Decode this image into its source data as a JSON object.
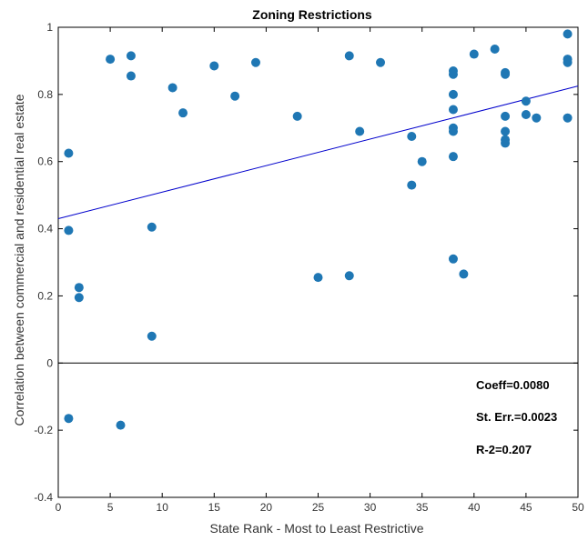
{
  "chart_data": {
    "type": "scatter",
    "title": "Zoning Restrictions",
    "xlabel": "State Rank - Most to Least Restrictive",
    "ylabel": "Correlation between commercial and residential real estate",
    "xlim": [
      0,
      50
    ],
    "ylim": [
      -0.4,
      1
    ],
    "xticks": [
      0,
      5,
      10,
      15,
      20,
      25,
      30,
      35,
      40,
      45,
      50
    ],
    "yticks": [
      -0.4,
      -0.2,
      0,
      0.2,
      0.4,
      0.6,
      0.8,
      1
    ],
    "grid": false,
    "zero_line": true,
    "marker_color": "#1f77b4",
    "fit_line_color": "#0000cc",
    "fit_line": {
      "x": [
        0,
        50
      ],
      "y": [
        0.43,
        0.825
      ]
    },
    "annotations": [
      "Coeff=0.0080",
      "St. Err.=0.0023",
      "R-2=0.207"
    ],
    "points": [
      [
        1,
        0.625
      ],
      [
        1,
        0.395
      ],
      [
        1,
        -0.165
      ],
      [
        2,
        0.225
      ],
      [
        2,
        0.195
      ],
      [
        5,
        0.905
      ],
      [
        6,
        -0.185
      ],
      [
        7,
        0.915
      ],
      [
        7,
        0.855
      ],
      [
        9,
        0.405
      ],
      [
        9,
        0.08
      ],
      [
        11,
        0.82
      ],
      [
        12,
        0.745
      ],
      [
        15,
        0.885
      ],
      [
        17,
        0.795
      ],
      [
        19,
        0.895
      ],
      [
        23,
        0.735
      ],
      [
        25,
        0.255
      ],
      [
        28,
        0.915
      ],
      [
        28,
        0.26
      ],
      [
        29,
        0.69
      ],
      [
        31,
        0.895
      ],
      [
        34,
        0.675
      ],
      [
        34,
        0.53
      ],
      [
        35,
        0.6
      ],
      [
        38,
        0.87
      ],
      [
        38,
        0.86
      ],
      [
        38,
        0.8
      ],
      [
        38,
        0.755
      ],
      [
        38,
        0.7
      ],
      [
        38,
        0.69
      ],
      [
        38,
        0.615
      ],
      [
        38,
        0.31
      ],
      [
        39,
        0.265
      ],
      [
        40,
        0.92
      ],
      [
        42,
        0.935
      ],
      [
        43,
        0.865
      ],
      [
        43,
        0.86
      ],
      [
        43,
        0.735
      ],
      [
        43,
        0.69
      ],
      [
        43,
        0.665
      ],
      [
        43,
        0.655
      ],
      [
        45,
        0.78
      ],
      [
        45,
        0.74
      ],
      [
        46,
        0.73
      ],
      [
        49,
        0.98
      ],
      [
        49,
        0.905
      ],
      [
        49,
        0.895
      ],
      [
        49,
        0.73
      ]
    ]
  }
}
